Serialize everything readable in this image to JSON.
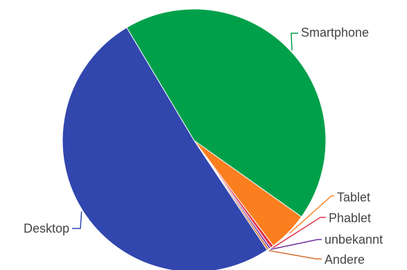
{
  "chart_data": {
    "type": "pie",
    "title": "",
    "slices": [
      {
        "label": "Smartphone",
        "value": 43.4,
        "color": "#00a04a"
      },
      {
        "label": "Tablet",
        "value": 4.9,
        "color": "#fb7f1f"
      },
      {
        "label": "Phablet",
        "value": 0.4,
        "color": "#e0344a"
      },
      {
        "label": "unbekannt",
        "value": 0.25,
        "color": "#6e2f9a"
      },
      {
        "label": "Andere",
        "value": 0.25,
        "color": "#d2692b"
      },
      {
        "label": "Desktop",
        "value": 50.8,
        "color": "#3147ae"
      }
    ],
    "start_angle_deg": -120.8,
    "legend": "none",
    "labels_outside": true
  }
}
